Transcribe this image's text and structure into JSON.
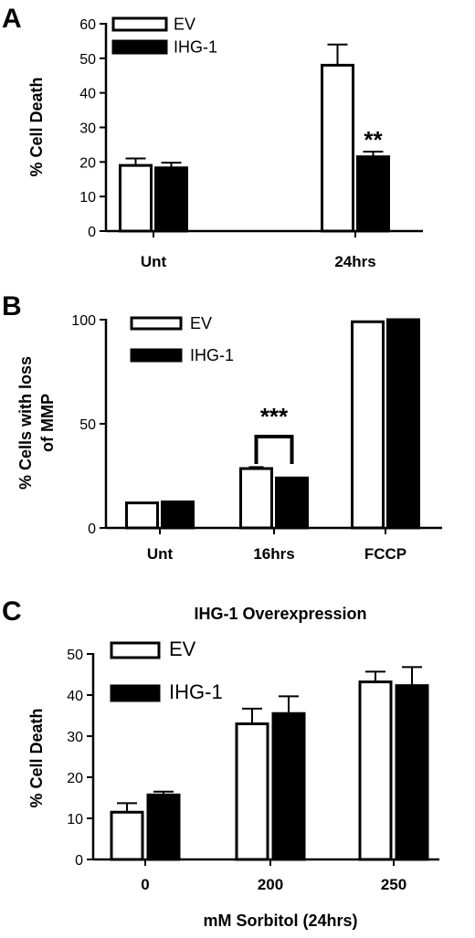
{
  "chart_data": [
    {
      "panel": "A",
      "type": "bar",
      "title": "",
      "ylabel": "% Cell Death",
      "xlabel": "",
      "ylim": [
        0,
        60
      ],
      "yticks": [
        0,
        10,
        20,
        30,
        40,
        50,
        60
      ],
      "categories": [
        "Unt",
        "24hrs"
      ],
      "legend_position": "top-left",
      "series": [
        {
          "name": "EV",
          "values": [
            19,
            48
          ],
          "errors": [
            2,
            6
          ],
          "fill": "#ffffff"
        },
        {
          "name": "IHG-1",
          "values": [
            18.3,
            21.5
          ],
          "errors": [
            1.5,
            1.5
          ],
          "fill": "#000000"
        }
      ],
      "annotations": [
        {
          "text": "**",
          "category": 1,
          "series": 1
        }
      ]
    },
    {
      "panel": "B",
      "type": "bar",
      "title": "",
      "ylabel": "% Cells with loss of MMP",
      "ylabel_lines": [
        "% Cells with loss",
        "of MMP"
      ],
      "xlabel": "",
      "ylim": [
        0,
        100
      ],
      "yticks": [
        0,
        50,
        100
      ],
      "categories": [
        "Unt",
        "16hrs",
        "FCCP"
      ],
      "legend_position": "top-left",
      "series": [
        {
          "name": "EV",
          "values": [
            12,
            28.5,
            99
          ],
          "errors": [
            0,
            0.7,
            0
          ],
          "fill": "#ffffff"
        },
        {
          "name": "IHG-1",
          "values": [
            12.5,
            24,
            100
          ],
          "errors": [
            0,
            0,
            0
          ],
          "fill": "#000000"
        }
      ],
      "annotations": [
        {
          "text": "***",
          "bracket_category": 1
        }
      ]
    },
    {
      "panel": "C",
      "type": "bar",
      "title": "IHG-1 Overexpression",
      "ylabel": "% Cell Death",
      "xlabel": "mM Sorbitol (24hrs)",
      "ylim": [
        0,
        50
      ],
      "yticks": [
        0,
        10,
        20,
        30,
        40,
        50
      ],
      "categories": [
        "0",
        "200",
        "250"
      ],
      "legend_position": "top-left",
      "series": [
        {
          "name": "EV",
          "values": [
            11.5,
            33,
            43.2
          ],
          "errors": [
            2.2,
            3.7,
            2.5
          ],
          "fill": "#ffffff"
        },
        {
          "name": "IHG-1",
          "values": [
            15.7,
            35.5,
            42.3
          ],
          "errors": [
            0.8,
            4.2,
            4.5
          ],
          "fill": "#000000"
        }
      ],
      "annotations": []
    }
  ]
}
